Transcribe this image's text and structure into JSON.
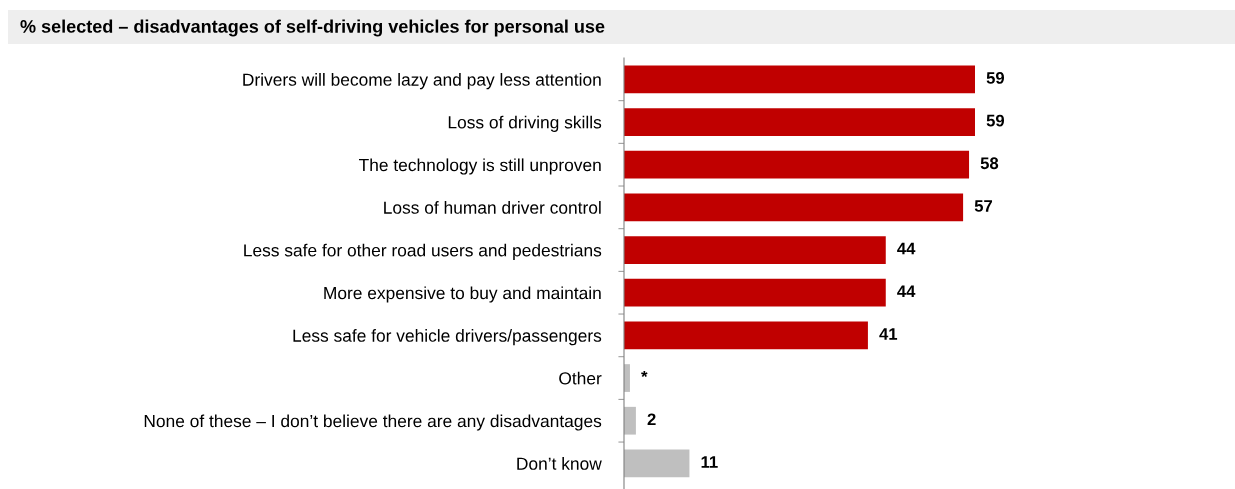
{
  "chart_data": {
    "type": "bar",
    "orientation": "horizontal",
    "title": "% selected – disadvantages of self-driving vehicles for personal use",
    "categories": [
      "Drivers will become lazy and pay less attention",
      "Loss of driving skills",
      "The technology is still unproven",
      "Loss of human driver control",
      "Less safe for other road users and pedestrians",
      "More expensive to buy and maintain",
      "Less safe for vehicle drivers/passengers",
      "Other",
      "None of these – I don’t believe there are any disadvantages",
      "Don’t know"
    ],
    "values": [
      59,
      59,
      58,
      57,
      44,
      44,
      41,
      1,
      2,
      11
    ],
    "value_labels": [
      "59",
      "59",
      "58",
      "57",
      "44",
      "44",
      "41",
      "*",
      "2",
      "11"
    ],
    "colors": [
      "#c00000",
      "#c00000",
      "#c00000",
      "#c00000",
      "#c00000",
      "#c00000",
      "#c00000",
      "#bfbfbf",
      "#bfbfbf",
      "#bfbfbf"
    ],
    "grid": false,
    "legend": false
  }
}
